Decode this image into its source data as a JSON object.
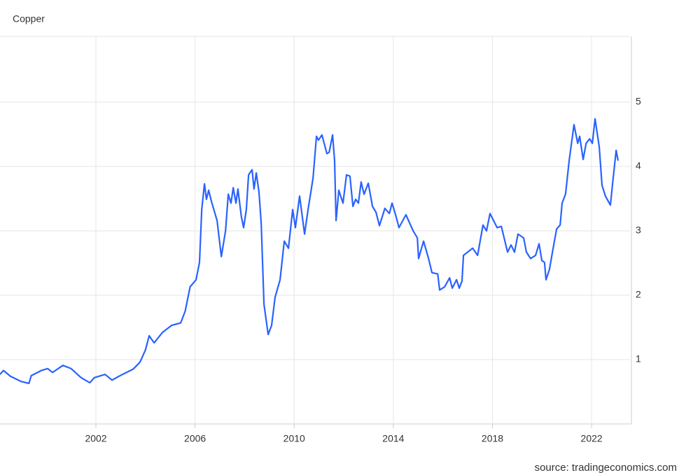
{
  "chart_data": {
    "type": "line",
    "title": "Copper",
    "source": "source: tradingeconomics.com",
    "color": "#2962ff",
    "grid": true,
    "xlim": [
      1998.13,
      2023.55
    ],
    "xticks": [
      2002,
      2006,
      2010,
      2014,
      2018,
      2022
    ],
    "ylim": [
      0,
      6
    ],
    "yticks": [
      1,
      2,
      3,
      4,
      5
    ],
    "x": [
      1998.13,
      1998.27,
      1998.55,
      1998.98,
      1999.3,
      1999.39,
      1999.8,
      2000.05,
      2000.25,
      2000.67,
      2001.0,
      2001.4,
      2001.75,
      2001.94,
      2002.37,
      2002.65,
      2003.07,
      2003.5,
      2003.78,
      2004.0,
      2004.15,
      2004.35,
      2004.68,
      2005.05,
      2005.42,
      2005.6,
      2005.8,
      2006.04,
      2006.18,
      2006.27,
      2006.38,
      2006.46,
      2006.55,
      2006.66,
      2006.89,
      2007.06,
      2007.23,
      2007.34,
      2007.45,
      2007.54,
      2007.65,
      2007.73,
      2007.87,
      2007.96,
      2008.07,
      2008.16,
      2008.3,
      2008.38,
      2008.47,
      2008.58,
      2008.67,
      2008.78,
      2008.95,
      2009.09,
      2009.23,
      2009.43,
      2009.6,
      2009.77,
      2009.94,
      2010.05,
      2010.22,
      2010.42,
      2010.56,
      2010.76,
      2010.9,
      2010.98,
      2011.12,
      2011.32,
      2011.41,
      2011.55,
      2011.63,
      2011.69,
      2011.8,
      2011.97,
      2012.11,
      2012.25,
      2012.37,
      2012.48,
      2012.59,
      2012.7,
      2012.82,
      2012.99,
      2013.16,
      2013.3,
      2013.44,
      2013.66,
      2013.84,
      2013.95,
      2014.09,
      2014.23,
      2014.51,
      2014.8,
      2014.97,
      2015.02,
      2015.22,
      2015.42,
      2015.56,
      2015.79,
      2015.87,
      2016.07,
      2016.27,
      2016.38,
      2016.55,
      2016.66,
      2016.77,
      2016.83,
      2017.0,
      2017.2,
      2017.4,
      2017.62,
      2017.76,
      2017.9,
      2018.19,
      2018.36,
      2018.61,
      2018.75,
      2018.89,
      2019.03,
      2019.26,
      2019.37,
      2019.54,
      2019.74,
      2019.88,
      2019.99,
      2020.1,
      2020.16,
      2020.3,
      2020.45,
      2020.59,
      2020.73,
      2020.81,
      2020.95,
      2021.1,
      2021.29,
      2021.44,
      2021.52,
      2021.66,
      2021.78,
      2021.92,
      2022.03,
      2022.14,
      2022.31,
      2022.42,
      2022.56,
      2022.76,
      2022.85,
      2022.99,
      2023.07
    ],
    "values": [
      0.77,
      0.83,
      0.74,
      0.66,
      0.63,
      0.75,
      0.83,
      0.86,
      0.8,
      0.91,
      0.86,
      0.72,
      0.64,
      0.72,
      0.77,
      0.68,
      0.77,
      0.85,
      0.96,
      1.15,
      1.37,
      1.26,
      1.42,
      1.53,
      1.57,
      1.75,
      2.13,
      2.24,
      2.51,
      3.33,
      3.73,
      3.49,
      3.63,
      3.46,
      3.16,
      2.6,
      3.0,
      3.57,
      3.43,
      3.67,
      3.43,
      3.65,
      3.22,
      3.05,
      3.33,
      3.87,
      3.95,
      3.65,
      3.9,
      3.6,
      3.11,
      1.86,
      1.39,
      1.53,
      1.97,
      2.24,
      2.84,
      2.73,
      3.33,
      3.05,
      3.54,
      2.95,
      3.33,
      3.82,
      4.47,
      4.41,
      4.49,
      4.2,
      4.22,
      4.49,
      4.09,
      3.16,
      3.63,
      3.43,
      3.87,
      3.85,
      3.38,
      3.49,
      3.43,
      3.76,
      3.57,
      3.74,
      3.38,
      3.29,
      3.08,
      3.35,
      3.27,
      3.43,
      3.25,
      3.05,
      3.25,
      3.0,
      2.89,
      2.57,
      2.84,
      2.57,
      2.35,
      2.33,
      2.08,
      2.13,
      2.27,
      2.11,
      2.24,
      2.11,
      2.22,
      2.62,
      2.67,
      2.73,
      2.62,
      3.09,
      3.0,
      3.27,
      3.05,
      3.07,
      2.67,
      2.78,
      2.67,
      2.95,
      2.89,
      2.67,
      2.57,
      2.62,
      2.8,
      2.54,
      2.51,
      2.24,
      2.4,
      2.73,
      3.03,
      3.09,
      3.43,
      3.57,
      4.11,
      4.65,
      4.36,
      4.47,
      4.11,
      4.36,
      4.43,
      4.36,
      4.74,
      4.3,
      3.71,
      3.54,
      3.4,
      3.74,
      4.25,
      4.09
    ]
  }
}
